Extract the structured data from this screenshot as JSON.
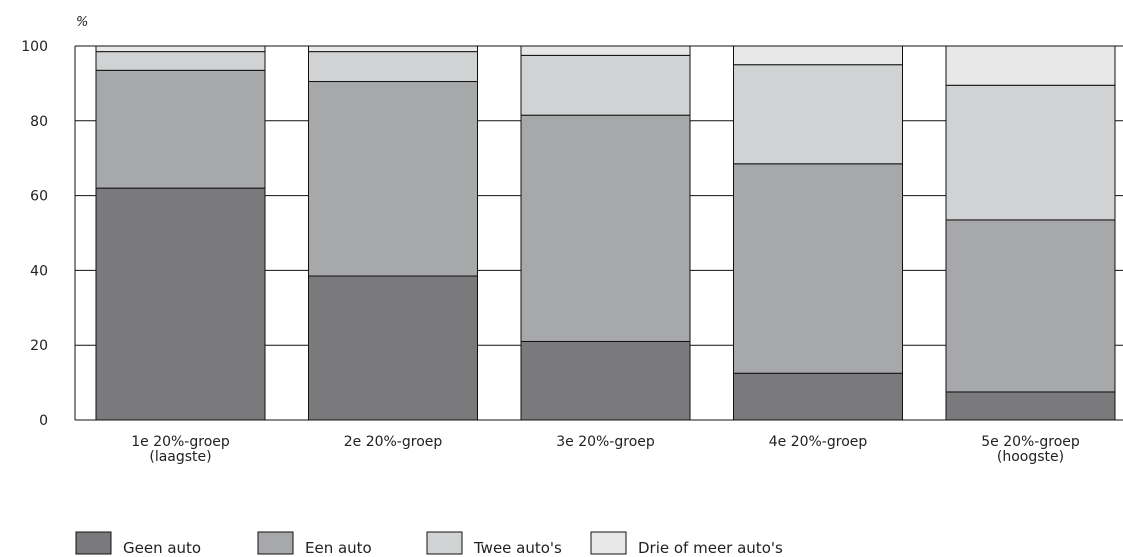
{
  "chart_data": {
    "type": "bar",
    "stacked": true,
    "ylabel": "%",
    "ylim": [
      0,
      100
    ],
    "yticks": [
      0,
      20,
      40,
      60,
      80,
      100
    ],
    "grid": true,
    "legend_position": "bottom",
    "categories": [
      [
        "1e 20%-groep",
        "(laagste)"
      ],
      [
        "2e 20%-groep"
      ],
      [
        "3e 20%-groep"
      ],
      [
        "4e 20%-groep"
      ],
      [
        "5e 20%-groep",
        "(hoogste)"
      ]
    ],
    "series": [
      {
        "name": "Geen auto",
        "color": "#7a7a7c",
        "values": [
          62,
          38.5,
          21,
          12.5,
          7.5
        ]
      },
      {
        "name": "Een auto",
        "color": "#a7a8aa",
        "values": [
          31.5,
          52,
          60.5,
          56,
          46
        ]
      },
      {
        "name": "Twee auto's",
        "color": "#d1d2d3",
        "values": [
          5,
          8,
          16,
          26.5,
          36
        ]
      },
      {
        "name": "Drie of meer auto's",
        "color": "#e8e8e9",
        "values": [
          1.5,
          1.5,
          2.5,
          5,
          10.5
        ]
      }
    ]
  }
}
